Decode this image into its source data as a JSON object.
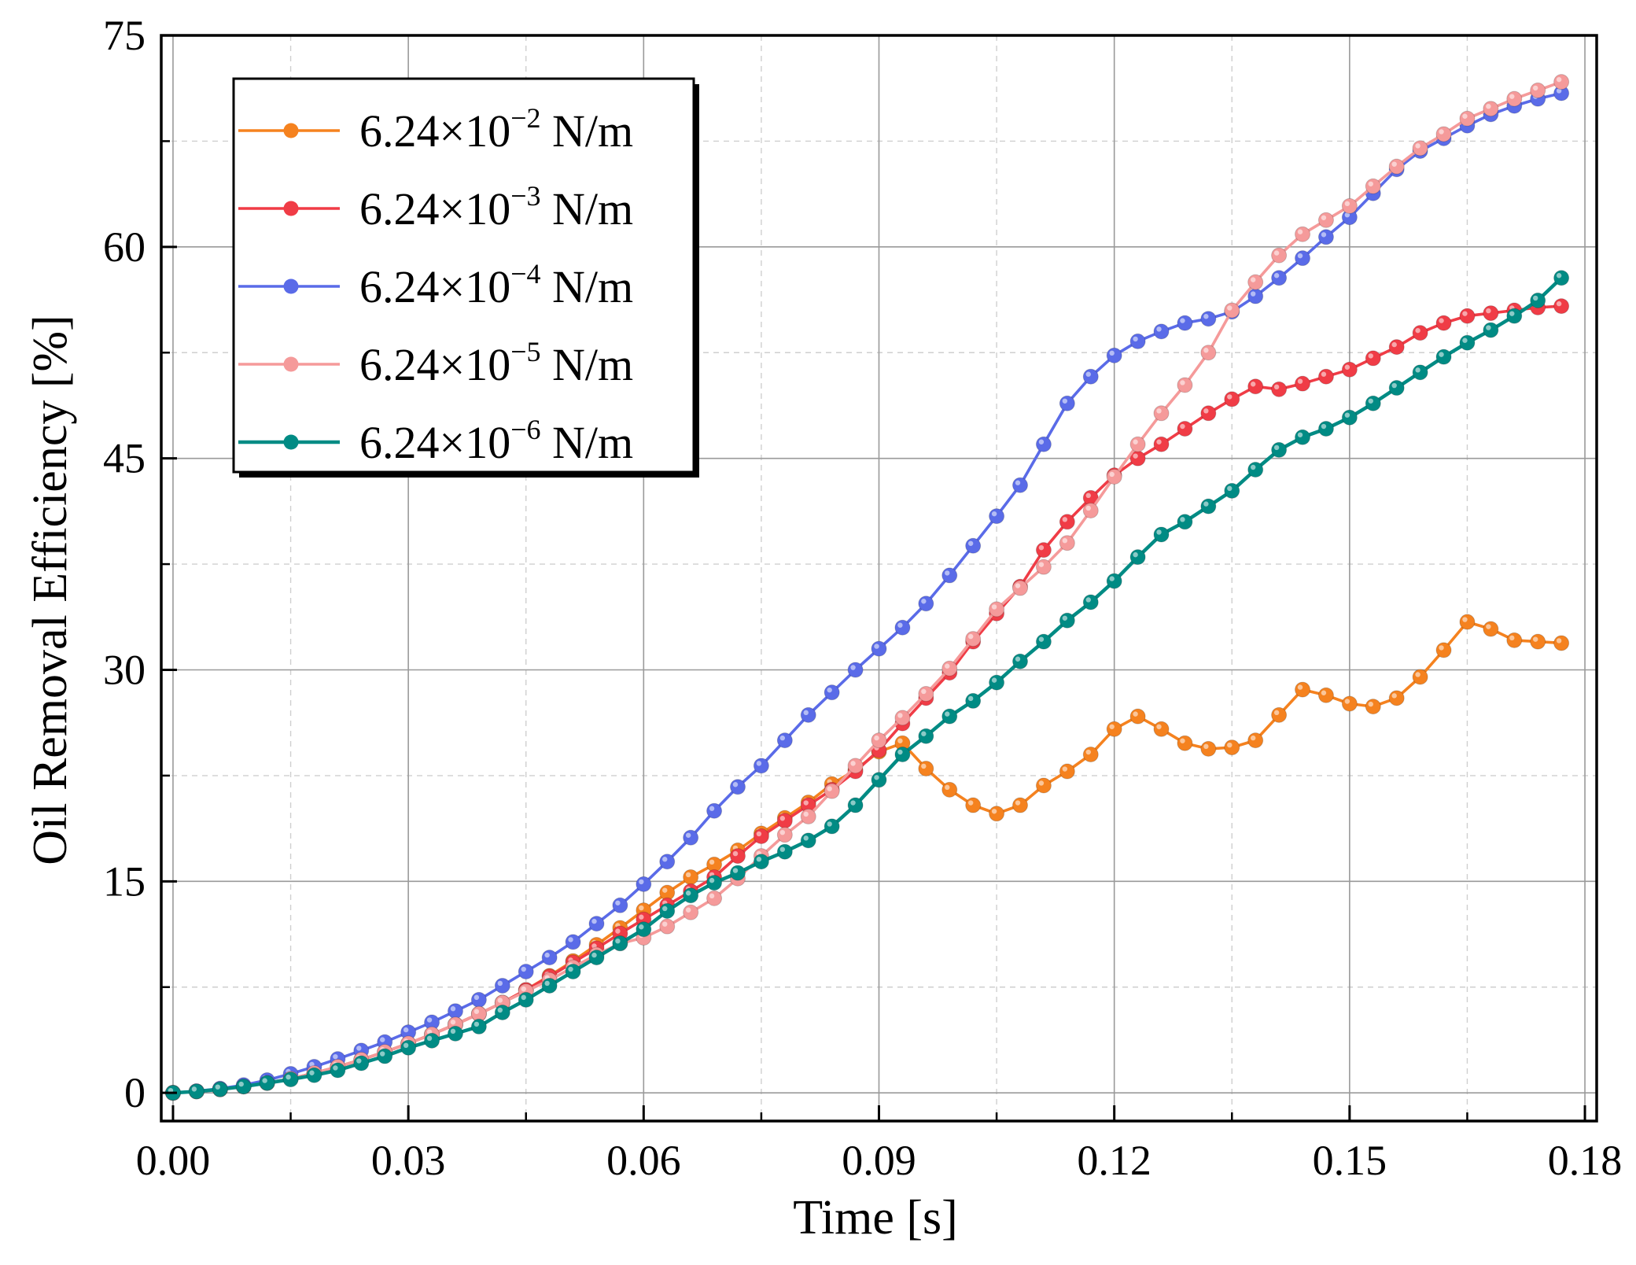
{
  "chart_data": {
    "type": "line",
    "title": "",
    "xlabel": "Time [s]",
    "ylabel": "Oil Removal Efficiency [%]",
    "xlim": [
      -0.0015,
      0.1815
    ],
    "ylim": [
      -2,
      75
    ],
    "xticks": [
      0.0,
      0.03,
      0.06,
      0.09,
      0.12,
      0.15,
      0.18
    ],
    "xtick_labels": [
      "0.00",
      "0.03",
      "0.06",
      "0.09",
      "0.12",
      "0.15",
      "0.18"
    ],
    "yticks": [
      0,
      15,
      30,
      45,
      60,
      75
    ],
    "ytick_labels": [
      "0",
      "15",
      "30",
      "45",
      "60",
      "75"
    ],
    "grid": true,
    "legend_position": "top-left",
    "x_start": 0.0,
    "x_step": 0.003,
    "series": [
      {
        "name": "6.24×10−2 N/m",
        "mantissa": "6.24×10",
        "exponent": "−2",
        "unit": " N/m",
        "color": "#f5821f",
        "values": [
          0.0,
          0.1,
          0.25,
          0.45,
          0.7,
          1.0,
          1.4,
          1.85,
          2.35,
          2.9,
          3.5,
          4.15,
          4.85,
          5.6,
          6.4,
          7.3,
          8.3,
          9.35,
          10.5,
          11.7,
          12.95,
          14.2,
          15.3,
          16.2,
          17.2,
          18.4,
          19.5,
          20.6,
          21.9,
          22.9,
          24.2,
          24.8,
          23.0,
          21.5,
          20.4,
          19.8,
          20.4,
          21.8,
          22.8,
          24.0,
          25.8,
          26.7,
          25.8,
          24.8,
          24.4,
          24.5,
          25.0,
          26.8,
          28.6,
          28.2,
          27.6,
          27.4,
          28.0,
          29.5,
          31.4,
          33.4,
          32.9,
          32.1,
          32.0,
          31.9
        ]
      },
      {
        "name": "6.24×10−3 N/m",
        "mantissa": "6.24×10",
        "exponent": "−3",
        "unit": " N/m",
        "color": "#f03c46",
        "values": [
          0.0,
          0.1,
          0.25,
          0.45,
          0.7,
          1.0,
          1.4,
          1.85,
          2.35,
          2.9,
          3.5,
          4.15,
          4.85,
          5.6,
          6.4,
          7.3,
          8.25,
          9.25,
          10.25,
          11.3,
          12.3,
          13.3,
          14.3,
          15.3,
          16.8,
          18.2,
          19.3,
          20.4,
          21.5,
          22.8,
          24.3,
          26.2,
          28.0,
          29.8,
          32.0,
          34.0,
          35.9,
          38.5,
          40.5,
          42.2,
          43.8,
          45.0,
          46.0,
          47.1,
          48.2,
          49.2,
          50.1,
          49.9,
          50.3,
          50.8,
          51.3,
          52.1,
          52.9,
          53.9,
          54.6,
          55.1,
          55.3,
          55.5,
          55.7,
          55.8
        ]
      },
      {
        "name": "6.24×10−4 N/m",
        "mantissa": "6.24×10",
        "exponent": "−4",
        "unit": " N/m",
        "color": "#5a6be8",
        "values": [
          0.0,
          0.12,
          0.3,
          0.55,
          0.9,
          1.35,
          1.85,
          2.4,
          3.0,
          3.6,
          4.3,
          5.0,
          5.8,
          6.6,
          7.6,
          8.6,
          9.6,
          10.7,
          12.0,
          13.3,
          14.8,
          16.4,
          18.1,
          20.0,
          21.7,
          23.2,
          25.0,
          26.8,
          28.4,
          30.0,
          31.5,
          33.0,
          34.7,
          36.7,
          38.8,
          40.9,
          43.1,
          46.0,
          48.9,
          50.8,
          52.3,
          53.3,
          54.0,
          54.6,
          54.9,
          55.4,
          56.5,
          57.8,
          59.2,
          60.7,
          62.1,
          63.8,
          65.5,
          66.8,
          67.7,
          68.6,
          69.4,
          70.0,
          70.5,
          70.9
        ]
      },
      {
        "name": "6.24×10−5 N/m",
        "mantissa": "6.24×10",
        "exponent": "−5",
        "unit": " N/m",
        "color": "#f59a9a",
        "values": [
          0.0,
          0.1,
          0.25,
          0.45,
          0.7,
          1.0,
          1.4,
          1.85,
          2.35,
          2.9,
          3.5,
          4.15,
          4.85,
          5.6,
          6.4,
          7.2,
          8.0,
          8.9,
          9.8,
          10.6,
          11.0,
          11.8,
          12.8,
          13.8,
          15.2,
          16.8,
          18.3,
          19.6,
          21.4,
          23.2,
          25.0,
          26.6,
          28.3,
          30.1,
          32.2,
          34.3,
          35.8,
          37.3,
          39.0,
          41.3,
          43.7,
          46.0,
          48.2,
          50.2,
          52.5,
          55.5,
          57.5,
          59.4,
          60.9,
          61.9,
          62.9,
          64.3,
          65.7,
          67.0,
          68.0,
          69.1,
          69.8,
          70.5,
          71.1,
          71.7
        ]
      },
      {
        "name": "6.24×10−6 N/m",
        "mantissa": "6.24×10",
        "exponent": "−6",
        "unit": " N/m",
        "color": "#008b84",
        "values": [
          0.0,
          0.1,
          0.25,
          0.45,
          0.7,
          0.95,
          1.25,
          1.6,
          2.1,
          2.6,
          3.2,
          3.7,
          4.2,
          4.7,
          5.7,
          6.6,
          7.6,
          8.6,
          9.6,
          10.6,
          11.6,
          12.9,
          14.0,
          14.9,
          15.6,
          16.4,
          17.1,
          17.9,
          18.9,
          20.4,
          22.2,
          24.0,
          25.3,
          26.7,
          27.8,
          29.1,
          30.6,
          32.0,
          33.5,
          34.8,
          36.3,
          38.0,
          39.6,
          40.5,
          41.6,
          42.7,
          44.2,
          45.6,
          46.5,
          47.1,
          47.9,
          48.9,
          50.0,
          51.1,
          52.2,
          53.2,
          54.1,
          55.1,
          56.2,
          57.8
        ]
      }
    ]
  }
}
